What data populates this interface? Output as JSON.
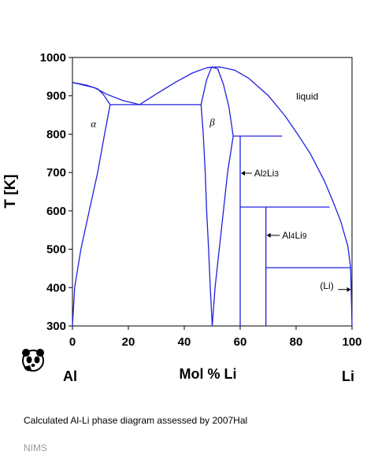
{
  "chart_data": {
    "type": "line",
    "title": "",
    "xlabel": "Mol % Li",
    "ylabel": "T [K]",
    "xlim": [
      0,
      100
    ],
    "ylim": [
      300,
      1000
    ],
    "x_ticks": [
      0,
      20,
      40,
      60,
      80,
      100
    ],
    "y_ticks": [
      300,
      400,
      500,
      600,
      700,
      800,
      900,
      1000
    ],
    "left_element": "Al",
    "right_element": "Li",
    "line_color": "#2020e0",
    "grid": false,
    "series": [
      {
        "points": [
          [
            0,
            935
          ],
          [
            8,
            921
          ],
          [
            12,
            905
          ],
          [
            18,
            888
          ],
          [
            24,
            877
          ]
        ]
      },
      {
        "points": [
          [
            0,
            935
          ],
          [
            5,
            928
          ],
          [
            9,
            918
          ],
          [
            11,
            904
          ],
          [
            13.5,
            877
          ]
        ]
      },
      {
        "points": [
          [
            0,
            300
          ],
          [
            0.8,
            400
          ],
          [
            3,
            500
          ],
          [
            6,
            600
          ],
          [
            9,
            700
          ],
          [
            11.5,
            800
          ],
          [
            13.5,
            877
          ]
        ]
      },
      {
        "points": [
          [
            13.5,
            877
          ],
          [
            46,
            877
          ]
        ]
      },
      {
        "points": [
          [
            24,
            877
          ],
          [
            30,
            905
          ],
          [
            37,
            936
          ],
          [
            43,
            960
          ],
          [
            48,
            973
          ],
          [
            50,
            975
          ]
        ]
      },
      {
        "points": [
          [
            50,
            975
          ],
          [
            53,
            975
          ],
          [
            58,
            967
          ],
          [
            63,
            946
          ],
          [
            70,
            901
          ],
          [
            76,
            848
          ],
          [
            81,
            795
          ],
          [
            85,
            750
          ],
          [
            90,
            680
          ],
          [
            93,
            628
          ],
          [
            96,
            572
          ],
          [
            98.5,
            508
          ],
          [
            99.5,
            452
          ]
        ]
      },
      {
        "points": [
          [
            46,
            877
          ],
          [
            47,
            910
          ],
          [
            48,
            942
          ],
          [
            49.5,
            970
          ],
          [
            50,
            975
          ]
        ]
      },
      {
        "points": [
          [
            50,
            975
          ],
          [
            52,
            970
          ],
          [
            54,
            930
          ],
          [
            56,
            870
          ],
          [
            57.5,
            795
          ]
        ]
      },
      {
        "points": [
          [
            46,
            877
          ],
          [
            46.8,
            800
          ],
          [
            47.5,
            700
          ],
          [
            48,
            600
          ],
          [
            48.7,
            500
          ],
          [
            49.3,
            400
          ],
          [
            50,
            300
          ]
        ]
      },
      {
        "points": [
          [
            50,
            300
          ],
          [
            51,
            400
          ],
          [
            52.5,
            500
          ],
          [
            54,
            600
          ],
          [
            55.5,
            700
          ],
          [
            57.5,
            795
          ]
        ]
      },
      {
        "points": [
          [
            57.5,
            795
          ],
          [
            75,
            795
          ]
        ]
      },
      {
        "points": [
          [
            60,
            795
          ],
          [
            60,
            300
          ]
        ]
      },
      {
        "points": [
          [
            60,
            610
          ],
          [
            92,
            610
          ]
        ]
      },
      {
        "points": [
          [
            69.2,
            610
          ],
          [
            69.2,
            300
          ]
        ]
      },
      {
        "points": [
          [
            69.2,
            452
          ],
          [
            99.5,
            452
          ]
        ]
      },
      {
        "points": [
          [
            99.5,
            452
          ],
          [
            99.7,
            400
          ],
          [
            100,
            300
          ]
        ]
      }
    ],
    "annotations": [
      {
        "text": "liquid",
        "x": 84,
        "y": 890,
        "style": "normal"
      },
      {
        "text": "α",
        "x": 7.5,
        "y": 818,
        "style": "italic"
      },
      {
        "text": "β",
        "x": 50,
        "y": 822,
        "style": "italic"
      },
      {
        "text": "(Li)",
        "x": 91,
        "y": 396,
        "style": "normal"
      }
    ],
    "phase_labels": [
      {
        "base": "Al",
        "sub1": "2",
        "mid": "Li",
        "sub2": "3",
        "x": 65,
        "y": 690,
        "arrow_to_x": 60
      },
      {
        "base": "Al",
        "sub1": "4",
        "mid": "Li",
        "sub2": "9",
        "x": 75,
        "y": 528,
        "arrow_to_x": 69.2
      }
    ],
    "li_arrow": {
      "from_x": 95,
      "to_x": 99.6,
      "y": 395
    }
  },
  "caption": "Calculated Al-Li phase diagram assessed by 2007Hal",
  "footer": "NIMS",
  "logo_icon": "panda-icon"
}
